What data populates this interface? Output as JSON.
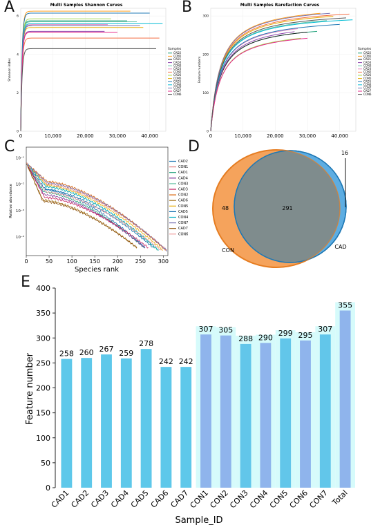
{
  "panel_letters": {
    "a": "A",
    "b": "B",
    "c": "C",
    "d": "D",
    "e": "E"
  },
  "chart_data": [
    {
      "panel": "A",
      "type": "line",
      "title": "Multi Samples Shannon Curves",
      "xlabel": "",
      "ylabel": "Shannon index",
      "xlim": [
        0,
        45000
      ],
      "ylim": [
        0,
        6.4
      ],
      "x_ticks": [
        0,
        10000,
        20000,
        30000,
        40000
      ],
      "x_tick_labels": [
        "0",
        "10,000",
        "20,000",
        "30,000",
        "40,000"
      ],
      "y_ticks": [
        0,
        2,
        4,
        6
      ],
      "y_tick_labels": [
        "0",
        "2",
        "4",
        "6"
      ],
      "legend_title": "Samples",
      "legend_position": "right",
      "series": [
        {
          "name": "CAD2",
          "color": "#1b9e77",
          "plateau": 5.75,
          "xmax": 33000
        },
        {
          "name": "CON1",
          "color": "#ff9f1c",
          "plateau": 6.25,
          "xmax": 34000
        },
        {
          "name": "CAD1",
          "color": "#222222",
          "plateau": 5.5,
          "xmax": 30000
        },
        {
          "name": "CAD4",
          "color": "#8e44ad",
          "plateau": 5.2,
          "xmax": 26000
        },
        {
          "name": "CON3",
          "color": "#66c2a5",
          "plateau": 5.7,
          "xmax": 36000
        },
        {
          "name": "CAD3",
          "color": "#e78ac3",
          "plateau": 5.55,
          "xmax": 27000
        },
        {
          "name": "CON2",
          "color": "#f46d43",
          "plateau": 4.85,
          "xmax": 43000
        },
        {
          "name": "CAD6",
          "color": "#a6d854",
          "plateau": 5.85,
          "xmax": 28000
        },
        {
          "name": "CON5",
          "color": "#e6ab02",
          "plateau": 5.4,
          "xmax": 38000
        },
        {
          "name": "CAD5",
          "color": "#1f78b4",
          "plateau": 6.15,
          "xmax": 40000
        },
        {
          "name": "CON4",
          "color": "#00bcd4",
          "plateau": 5.6,
          "xmax": 44000
        },
        {
          "name": "CON7",
          "color": "#7570b3",
          "plateau": 5.5,
          "xmax": 37000
        },
        {
          "name": "CAD7",
          "color": "#e7298a",
          "plateau": 5.15,
          "xmax": 30000
        },
        {
          "name": "CON6",
          "color": "#555555",
          "plateau": 4.3,
          "xmax": 42000
        }
      ]
    },
    {
      "panel": "B",
      "type": "line",
      "title": "Multi Samples Rarefaction Curves",
      "xlabel": "",
      "ylabel": "Feature numbers",
      "xlim": [
        0,
        45000
      ],
      "ylim": [
        0,
        320
      ],
      "x_ticks": [
        0,
        10000,
        20000,
        30000,
        40000
      ],
      "x_tick_labels": [
        "0",
        "10,000",
        "20,000",
        "30,000",
        "40,000"
      ],
      "y_ticks": [
        0,
        100,
        200,
        300
      ],
      "y_tick_labels": [
        "0",
        "100",
        "200",
        "300"
      ],
      "legend_title": "Samples",
      "legend_position": "right",
      "series": [
        {
          "name": "CAD2",
          "color": "#1b9e77",
          "final": 260,
          "xmax": 33000
        },
        {
          "name": "CON1",
          "color": "#ff9f1c",
          "final": 307,
          "xmax": 34000
        },
        {
          "name": "CAD1",
          "color": "#222222",
          "final": 258,
          "xmax": 30000
        },
        {
          "name": "CAD4",
          "color": "#8e44ad",
          "final": 259,
          "xmax": 26000
        },
        {
          "name": "CON3",
          "color": "#66c2a5",
          "final": 288,
          "xmax": 36000
        },
        {
          "name": "CAD3",
          "color": "#e78ac3",
          "final": 267,
          "xmax": 27000
        },
        {
          "name": "CON2",
          "color": "#f46d43",
          "final": 305,
          "xmax": 43000
        },
        {
          "name": "CAD6",
          "color": "#a6d854",
          "final": 242,
          "xmax": 28000
        },
        {
          "name": "CON5",
          "color": "#e6ab02",
          "final": 299,
          "xmax": 38000
        },
        {
          "name": "CAD5",
          "color": "#1f78b4",
          "final": 278,
          "xmax": 40000
        },
        {
          "name": "CON4",
          "color": "#00bcd4",
          "final": 290,
          "xmax": 44000
        },
        {
          "name": "CON7",
          "color": "#7570b3",
          "final": 307,
          "xmax": 37000
        },
        {
          "name": "CAD7",
          "color": "#e7298a",
          "final": 242,
          "xmax": 30000
        },
        {
          "name": "CON6",
          "color": "#555555",
          "final": 295,
          "xmax": 42000
        }
      ]
    },
    {
      "panel": "C",
      "type": "line",
      "title": "",
      "xlabel": "Species rank",
      "ylabel": "Relative abundance",
      "xlim": [
        0,
        310
      ],
      "ylim_log10": [
        -4.7,
        -0.6
      ],
      "x_ticks": [
        0,
        50,
        100,
        150,
        200,
        250,
        300
      ],
      "x_tick_labels": [
        "0",
        "50",
        "100",
        "150",
        "200",
        "250",
        "300"
      ],
      "y_ticks_log10": [
        -1,
        -2,
        -3,
        -4
      ],
      "y_tick_labels": [
        "10⁻¹",
        "10⁻²",
        "10⁻³",
        "10⁻⁴"
      ],
      "legend_position": "right",
      "series": [
        {
          "name": "CAD2",
          "color": "#1f78b4",
          "ranks": 260,
          "end_log": -4.4,
          "mid_log": -3.0
        },
        {
          "name": "CON1",
          "color": "#e07b7b",
          "ranks": 307,
          "end_log": -4.5,
          "mid_log": -2.8
        },
        {
          "name": "CAD1",
          "color": "#1b9e77",
          "ranks": 258,
          "end_log": -4.4,
          "mid_log": -3.1
        },
        {
          "name": "CAD4",
          "color": "#7b3294",
          "ranks": 259,
          "end_log": -4.4,
          "mid_log": -3.2
        },
        {
          "name": "CON3",
          "color": "#66c2a5",
          "ranks": 288,
          "end_log": -4.5,
          "mid_log": -2.9
        },
        {
          "name": "CAD3",
          "color": "#c2185b",
          "ranks": 267,
          "end_log": -4.4,
          "mid_log": -3.3
        },
        {
          "name": "CON2",
          "color": "#d95f02",
          "ranks": 305,
          "end_log": -4.5,
          "mid_log": -2.7
        },
        {
          "name": "CAD6",
          "color": "#a6761d",
          "ranks": 242,
          "end_log": -4.4,
          "mid_log": -3.4
        },
        {
          "name": "CON5",
          "color": "#e6ab02",
          "ranks": 299,
          "end_log": -4.5,
          "mid_log": -2.85
        },
        {
          "name": "CAD5",
          "color": "#0868ac",
          "ranks": 278,
          "end_log": -4.4,
          "mid_log": -3.0
        },
        {
          "name": "CON4",
          "color": "#00acc1",
          "ranks": 290,
          "end_log": -4.5,
          "mid_log": -2.9
        },
        {
          "name": "CON7",
          "color": "#7570b3",
          "ranks": 307,
          "end_log": -4.5,
          "mid_log": -2.75
        },
        {
          "name": "CAD7",
          "color": "#8c510a",
          "ranks": 242,
          "end_log": -4.4,
          "mid_log": -3.45
        },
        {
          "name": "CON6",
          "color": "#f1a1a1",
          "ranks": 295,
          "end_log": -4.5,
          "mid_log": -3.1
        }
      ]
    },
    {
      "panel": "D",
      "type": "venn",
      "sets": [
        {
          "name": "CON",
          "color": "#f5a35c",
          "edge": "#e67e22"
        },
        {
          "name": "CAD",
          "color": "#5dade2",
          "edge": "#1f78b4"
        }
      ],
      "counts": {
        "CON_only": 48,
        "shared": 291,
        "CAD_only": 16
      },
      "overlap_color": "#7f8c8d"
    },
    {
      "panel": "E",
      "type": "bar",
      "title": "",
      "xlabel": "Sample_ID",
      "ylabel": "Feature number",
      "ylim": [
        0,
        400
      ],
      "y_ticks": [
        0,
        50,
        100,
        150,
        200,
        250,
        300,
        350,
        400
      ],
      "categories": [
        "CAD1",
        "CAD2",
        "CAD3",
        "CAD4",
        "CAD5",
        "CAD6",
        "CAD7",
        "CON1",
        "CON2",
        "CON3",
        "CON4",
        "CON5",
        "CON6",
        "CON7",
        "Total"
      ],
      "values": [
        258,
        260,
        267,
        259,
        278,
        242,
        242,
        307,
        305,
        288,
        290,
        299,
        295,
        307,
        355
      ],
      "bar_colors": {
        "CAD": "#5ec8ea",
        "CON": "#8fb4ec",
        "alt_CON": "#62c6ea",
        "background": "#d6fbfb"
      }
    }
  ]
}
